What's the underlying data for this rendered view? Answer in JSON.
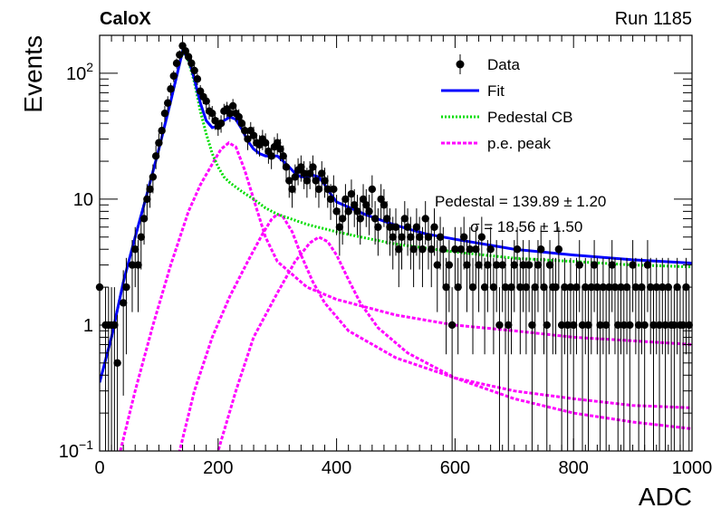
{
  "header": {
    "experiment": "CaloX",
    "run": "Run 1185"
  },
  "chart_data": {
    "type": "scatter",
    "xlabel": "ADC",
    "ylabel": "Events",
    "xlim": [
      0,
      1000
    ],
    "ylim": [
      0.1,
      200
    ],
    "yscale": "log",
    "x_ticks": [
      "0",
      "200",
      "400",
      "600",
      "800",
      "1000"
    ],
    "y_ticks": [
      {
        "value": 100,
        "base": "10",
        "exp": "2"
      },
      {
        "value": 10,
        "label": "10"
      },
      {
        "value": 1,
        "label": "1"
      },
      {
        "value": 0.1,
        "base": "10",
        "exp": "−1"
      }
    ],
    "grid": false,
    "legend_position": "top-right",
    "legend": [
      {
        "name": "Data",
        "style": "marker",
        "color": "#000000"
      },
      {
        "name": "Fit",
        "style": "line",
        "color": "#0000ff"
      },
      {
        "name": "Pedestal CB",
        "style": "dotted",
        "color": "#00dd00"
      },
      {
        "name": "p.e. peak",
        "style": "dashed",
        "color": "#ff00ff"
      }
    ],
    "annotations": [
      {
        "text": "Pedestal = 139.89 ± 1.20"
      },
      {
        "text": "σ = 18.56 ± 1.50"
      }
    ],
    "data_points": [
      [
        0,
        2
      ],
      [
        10,
        1
      ],
      [
        15,
        1
      ],
      [
        20,
        1
      ],
      [
        25,
        1
      ],
      [
        30,
        0.5
      ],
      [
        40,
        1.5
      ],
      [
        45,
        2
      ],
      [
        55,
        3
      ],
      [
        60,
        4
      ],
      [
        65,
        3
      ],
      [
        70,
        5
      ],
      [
        75,
        7
      ],
      [
        80,
        10
      ],
      [
        85,
        12
      ],
      [
        90,
        15
      ],
      [
        95,
        22
      ],
      [
        100,
        28
      ],
      [
        105,
        35
      ],
      [
        110,
        48
      ],
      [
        115,
        58
      ],
      [
        120,
        75
      ],
      [
        125,
        95
      ],
      [
        130,
        120
      ],
      [
        135,
        140
      ],
      [
        140,
        165
      ],
      [
        145,
        150
      ],
      [
        150,
        135
      ],
      [
        155,
        120
      ],
      [
        160,
        105
      ],
      [
        165,
        90
      ],
      [
        170,
        72
      ],
      [
        175,
        65
      ],
      [
        180,
        60
      ],
      [
        185,
        50
      ],
      [
        190,
        48
      ],
      [
        195,
        42
      ],
      [
        200,
        38
      ],
      [
        205,
        40
      ],
      [
        210,
        50
      ],
      [
        215,
        52
      ],
      [
        220,
        48
      ],
      [
        225,
        55
      ],
      [
        230,
        48
      ],
      [
        235,
        45
      ],
      [
        240,
        40
      ],
      [
        245,
        35
      ],
      [
        250,
        30
      ],
      [
        255,
        35
      ],
      [
        260,
        32
      ],
      [
        265,
        28
      ],
      [
        270,
        27
      ],
      [
        275,
        30
      ],
      [
        280,
        28
      ],
      [
        285,
        24
      ],
      [
        290,
        22
      ],
      [
        295,
        26
      ],
      [
        300,
        28
      ],
      [
        305,
        25
      ],
      [
        310,
        22
      ],
      [
        315,
        18
      ],
      [
        320,
        14
      ],
      [
        325,
        12
      ],
      [
        330,
        15
      ],
      [
        335,
        17
      ],
      [
        340,
        18
      ],
      [
        345,
        16
      ],
      [
        350,
        14
      ],
      [
        355,
        16
      ],
      [
        360,
        18
      ],
      [
        365,
        14
      ],
      [
        370,
        12
      ],
      [
        375,
        16
      ],
      [
        380,
        14
      ],
      [
        385,
        12
      ],
      [
        390,
        10
      ],
      [
        395,
        12
      ],
      [
        400,
        8
      ],
      [
        405,
        6
      ],
      [
        410,
        7
      ],
      [
        415,
        10
      ],
      [
        420,
        8
      ],
      [
        425,
        11
      ],
      [
        430,
        9
      ],
      [
        435,
        8
      ],
      [
        440,
        7
      ],
      [
        445,
        10
      ],
      [
        450,
        9
      ],
      [
        455,
        8
      ],
      [
        460,
        12
      ],
      [
        465,
        7
      ],
      [
        470,
        6
      ],
      [
        475,
        10
      ],
      [
        480,
        9
      ],
      [
        485,
        7
      ],
      [
        490,
        6
      ],
      [
        495,
        5
      ],
      [
        500,
        6
      ],
      [
        505,
        4
      ],
      [
        510,
        5
      ],
      [
        515,
        7
      ],
      [
        520,
        6
      ],
      [
        525,
        5
      ],
      [
        530,
        4
      ],
      [
        535,
        6
      ],
      [
        540,
        5
      ],
      [
        545,
        4
      ],
      [
        550,
        7
      ],
      [
        555,
        5
      ],
      [
        560,
        4
      ],
      [
        565,
        6
      ],
      [
        570,
        3
      ],
      [
        575,
        5
      ],
      [
        580,
        4
      ],
      [
        585,
        2
      ],
      [
        590,
        3
      ],
      [
        595,
        1
      ],
      [
        600,
        4
      ],
      [
        605,
        2
      ],
      [
        610,
        4
      ],
      [
        615,
        5
      ],
      [
        620,
        3
      ],
      [
        625,
        4
      ],
      [
        630,
        2
      ],
      [
        635,
        4
      ],
      [
        640,
        3
      ],
      [
        645,
        5
      ],
      [
        650,
        2
      ],
      [
        655,
        3
      ],
      [
        660,
        4
      ],
      [
        665,
        2
      ],
      [
        670,
        3
      ],
      [
        675,
        1
      ],
      [
        680,
        3
      ],
      [
        685,
        2
      ],
      [
        690,
        1
      ],
      [
        695,
        2
      ],
      [
        700,
        3
      ],
      [
        705,
        4
      ],
      [
        710,
        2
      ],
      [
        715,
        3
      ],
      [
        720,
        2
      ],
      [
        725,
        3
      ],
      [
        730,
        1
      ],
      [
        735,
        2
      ],
      [
        740,
        3
      ],
      [
        745,
        4
      ],
      [
        750,
        2
      ],
      [
        755,
        1
      ],
      [
        760,
        3
      ],
      [
        765,
        2
      ],
      [
        770,
        2
      ],
      [
        775,
        4
      ],
      [
        780,
        1
      ],
      [
        785,
        2
      ],
      [
        790,
        1
      ],
      [
        795,
        2
      ],
      [
        800,
        1
      ],
      [
        805,
        2
      ],
      [
        810,
        3
      ],
      [
        815,
        1
      ],
      [
        820,
        2
      ],
      [
        825,
        1
      ],
      [
        830,
        2
      ],
      [
        835,
        3
      ],
      [
        840,
        2
      ],
      [
        845,
        1
      ],
      [
        850,
        2
      ],
      [
        855,
        1
      ],
      [
        860,
        2
      ],
      [
        865,
        3
      ],
      [
        870,
        2
      ],
      [
        875,
        1
      ],
      [
        880,
        2
      ],
      [
        885,
        1
      ],
      [
        890,
        2
      ],
      [
        895,
        1
      ],
      [
        900,
        3
      ],
      [
        905,
        2
      ],
      [
        910,
        1
      ],
      [
        915,
        2
      ],
      [
        920,
        1
      ],
      [
        925,
        3
      ],
      [
        930,
        2
      ],
      [
        935,
        1
      ],
      [
        940,
        2
      ],
      [
        945,
        1
      ],
      [
        950,
        2
      ],
      [
        955,
        1
      ],
      [
        960,
        2
      ],
      [
        965,
        1
      ],
      [
        970,
        1
      ],
      [
        975,
        2
      ],
      [
        980,
        1
      ],
      [
        985,
        1
      ],
      [
        990,
        2
      ],
      [
        995,
        1
      ]
    ],
    "fit_curve": [
      [
        0,
        0.35
      ],
      [
        20,
        0.8
      ],
      [
        40,
        2.2
      ],
      [
        60,
        5
      ],
      [
        80,
        11
      ],
      [
        100,
        25
      ],
      [
        120,
        60
      ],
      [
        140,
        150
      ],
      [
        150,
        130
      ],
      [
        160,
        90
      ],
      [
        170,
        58
      ],
      [
        180,
        42
      ],
      [
        190,
        37
      ],
      [
        200,
        38
      ],
      [
        210,
        42
      ],
      [
        220,
        45
      ],
      [
        230,
        43
      ],
      [
        240,
        36
      ],
      [
        250,
        29
      ],
      [
        260,
        25
      ],
      [
        270,
        23
      ],
      [
        280,
        22
      ],
      [
        290,
        22
      ],
      [
        300,
        22
      ],
      [
        310,
        20
      ],
      [
        320,
        18
      ],
      [
        330,
        16
      ],
      [
        340,
        15
      ],
      [
        350,
        15
      ],
      [
        360,
        15.5
      ],
      [
        370,
        15
      ],
      [
        380,
        13
      ],
      [
        390,
        11
      ],
      [
        400,
        9.5
      ],
      [
        450,
        7.5
      ],
      [
        500,
        6.2
      ],
      [
        550,
        5.3
      ],
      [
        600,
        4.8
      ],
      [
        700,
        4.0
      ],
      [
        800,
        3.6
      ],
      [
        900,
        3.3
      ],
      [
        1000,
        3.1
      ]
    ],
    "pedestal_curve": [
      [
        0,
        0.35
      ],
      [
        20,
        0.8
      ],
      [
        40,
        2.2
      ],
      [
        60,
        5
      ],
      [
        80,
        11
      ],
      [
        100,
        25
      ],
      [
        120,
        60
      ],
      [
        140,
        150
      ],
      [
        150,
        125
      ],
      [
        160,
        85
      ],
      [
        170,
        50
      ],
      [
        180,
        33
      ],
      [
        190,
        23
      ],
      [
        200,
        18
      ],
      [
        210,
        15
      ],
      [
        220,
        13.5
      ],
      [
        240,
        11.5
      ],
      [
        260,
        10
      ],
      [
        280,
        8.5
      ],
      [
        300,
        7.6
      ],
      [
        350,
        6.3
      ],
      [
        400,
        5.5
      ],
      [
        450,
        4.9
      ],
      [
        500,
        4.4
      ],
      [
        600,
        3.8
      ],
      [
        700,
        3.4
      ],
      [
        800,
        3.2
      ],
      [
        900,
        3.0
      ],
      [
        1000,
        2.9
      ]
    ],
    "pe_peaks": [
      [
        [
          35,
          0.1
        ],
        [
          60,
          0.3
        ],
        [
          90,
          1
        ],
        [
          120,
          3
        ],
        [
          150,
          8
        ],
        [
          170,
          13
        ],
        [
          190,
          19
        ],
        [
          205,
          25
        ],
        [
          218,
          28
        ],
        [
          230,
          26
        ],
        [
          245,
          17
        ],
        [
          260,
          10
        ],
        [
          280,
          5
        ],
        [
          300,
          3.2
        ],
        [
          350,
          2.0
        ],
        [
          400,
          1.6
        ],
        [
          500,
          1.2
        ],
        [
          600,
          1.0
        ],
        [
          700,
          0.9
        ],
        [
          800,
          0.8
        ],
        [
          900,
          0.75
        ],
        [
          1000,
          0.7
        ]
      ],
      [
        [
          100,
          0.08
        ],
        [
          135,
          0.1
        ],
        [
          160,
          0.3
        ],
        [
          190,
          0.8
        ],
        [
          220,
          1.7
        ],
        [
          250,
          3.2
        ],
        [
          275,
          5.3
        ],
        [
          290,
          6.9
        ],
        [
          300,
          7.6
        ],
        [
          310,
          7.2
        ],
        [
          325,
          5.5
        ],
        [
          340,
          3.6
        ],
        [
          360,
          2.2
        ],
        [
          380,
          1.5
        ],
        [
          420,
          0.9
        ],
        [
          500,
          0.55
        ],
        [
          600,
          0.38
        ],
        [
          700,
          0.3
        ],
        [
          800,
          0.26
        ],
        [
          900,
          0.23
        ],
        [
          1000,
          0.22
        ]
      ],
      [
        [
          185,
          0.08
        ],
        [
          200,
          0.1
        ],
        [
          230,
          0.3
        ],
        [
          260,
          0.8
        ],
        [
          300,
          1.8
        ],
        [
          330,
          3.2
        ],
        [
          355,
          4.5
        ],
        [
          370,
          5.0
        ],
        [
          385,
          4.6
        ],
        [
          400,
          3.6
        ],
        [
          420,
          2.3
        ],
        [
          440,
          1.5
        ],
        [
          470,
          0.95
        ],
        [
          520,
          0.6
        ],
        [
          600,
          0.38
        ],
        [
          700,
          0.26
        ],
        [
          800,
          0.2
        ],
        [
          900,
          0.17
        ],
        [
          1000,
          0.15
        ]
      ]
    ]
  }
}
